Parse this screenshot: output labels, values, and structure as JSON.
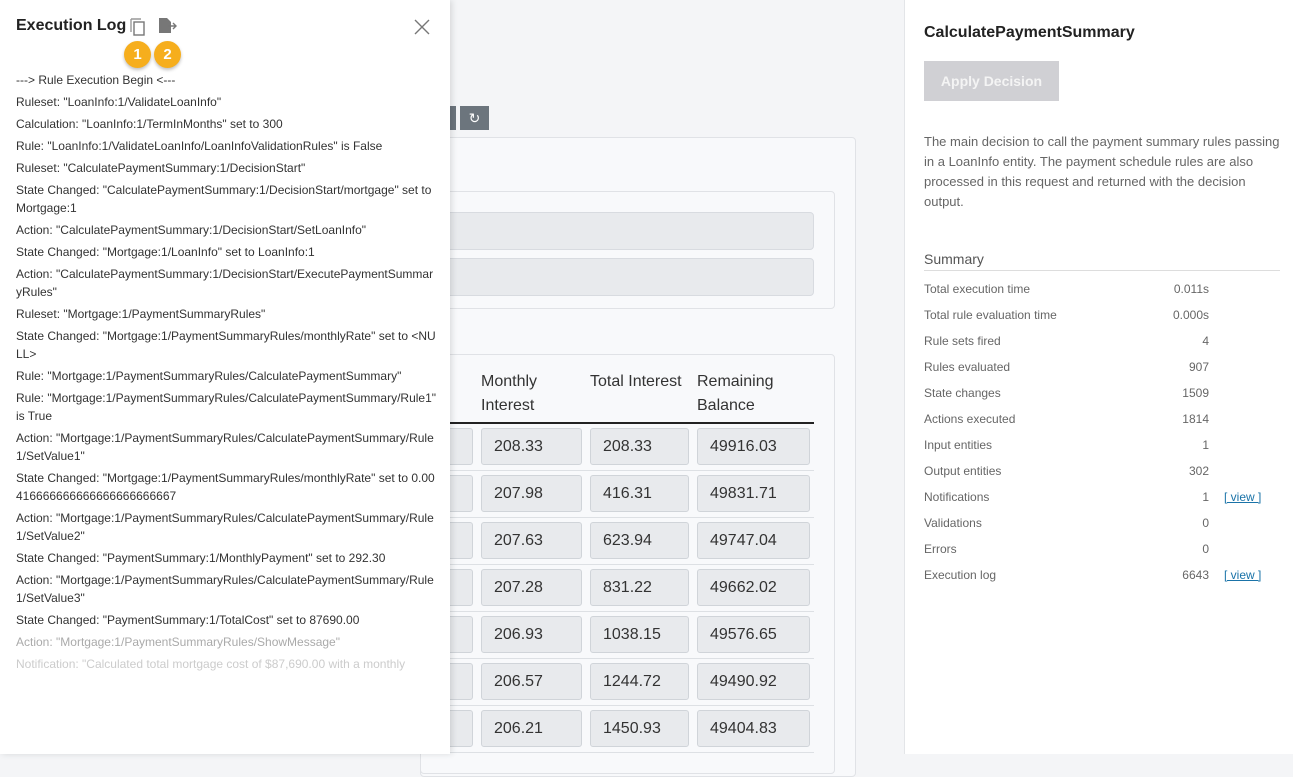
{
  "log": {
    "title": "Execution Log",
    "badges": [
      "1",
      "2"
    ],
    "icons": [
      "copy-icon",
      "export-icon",
      "close-icon"
    ],
    "entries": [
      "---> Rule Execution Begin <---",
      "Ruleset: \"LoanInfo:1/ValidateLoanInfo\"",
      "Calculation: \"LoanInfo:1/TermInMonths\" set to 300",
      "Rule: \"LoanInfo:1/ValidateLoanInfo/LoanInfoValidationRules\" is False",
      "Ruleset: \"CalculatePaymentSummary:1/DecisionStart\"",
      "State Changed: \"CalculatePaymentSummary:1/DecisionStart/mortgage\" set to Mortgage:1",
      "Action: \"CalculatePaymentSummary:1/DecisionStart/SetLoanInfo\"",
      "State Changed: \"Mortgage:1/LoanInfo\" set to LoanInfo:1",
      "Action: \"CalculatePaymentSummary:1/DecisionStart/ExecutePaymentSummaryRules\"",
      "Ruleset: \"Mortgage:1/PaymentSummaryRules\"",
      "State Changed: \"Mortgage:1/PaymentSummaryRules/monthlyRate\" set to <NULL>",
      "Rule: \"Mortgage:1/PaymentSummaryRules/CalculatePaymentSummary\"",
      "Rule: \"Mortgage:1/PaymentSummaryRules/CalculatePaymentSummary/Rule1\" is True",
      "Action: \"Mortgage:1/PaymentSummaryRules/CalculatePaymentSummary/Rule1/SetValue1\"",
      "State Changed: \"Mortgage:1/PaymentSummaryRules/monthlyRate\" set to 0.00416666666666666666666667",
      "Action: \"Mortgage:1/PaymentSummaryRules/CalculatePaymentSummary/Rule1/SetValue2\"",
      "State Changed: \"PaymentSummary:1/MonthlyPayment\" set to 292.30",
      "Action: \"Mortgage:1/PaymentSummaryRules/CalculatePaymentSummary/Rule1/SetValue3\"",
      "State Changed: \"PaymentSummary:1/TotalCost\" set to 87690.00",
      "Action: \"Mortgage:1/PaymentSummaryRules/ShowMessage\"",
      "Notification: \"Calculated total mortgage cost of $87,690.00 with a monthly"
    ]
  },
  "main": {
    "refresh_icon": "refresh-icon",
    "table": {
      "headers": [
        "Monthly Interest",
        "Total Interest",
        "Remaining Balance"
      ],
      "rows": [
        [
          "208.33",
          "208.33",
          "49916.03"
        ],
        [
          "207.98",
          "416.31",
          "49831.71"
        ],
        [
          "207.63",
          "623.94",
          "49747.04"
        ],
        [
          "207.28",
          "831.22",
          "49662.02"
        ],
        [
          "206.93",
          "1038.15",
          "49576.65"
        ],
        [
          "206.57",
          "1244.72",
          "49490.92"
        ],
        [
          "206.21",
          "1450.93",
          "49404.83"
        ]
      ]
    }
  },
  "right": {
    "title": "CalculatePaymentSummary",
    "apply_label": "Apply Decision",
    "description": "The main decision to call the payment summary rules passing in a LoanInfo entity. The payment schedule rules are also processed in this request and returned with the decision output.",
    "summary_title": "Summary",
    "summary": [
      {
        "label": "Total execution time",
        "value": "0.011s"
      },
      {
        "label": "Total rule evaluation time",
        "value": "0.000s"
      },
      {
        "label": "Rule sets fired",
        "value": "4"
      },
      {
        "label": "Rules evaluated",
        "value": "907"
      },
      {
        "label": "State changes",
        "value": "1509"
      },
      {
        "label": "Actions executed",
        "value": "1814"
      },
      {
        "label": "Input entities",
        "value": "1"
      },
      {
        "label": "Output entities",
        "value": "302"
      },
      {
        "label": "Notifications",
        "value": "1",
        "link": "[ view ]"
      },
      {
        "label": "Validations",
        "value": "0"
      },
      {
        "label": "Errors",
        "value": "0"
      },
      {
        "label": "Execution log",
        "value": "6643",
        "link": "[ view ]"
      }
    ]
  },
  "colors": {
    "badge": "#f6ae1d",
    "link": "#1a73a8",
    "button_disabled": "#d0d0d4"
  }
}
